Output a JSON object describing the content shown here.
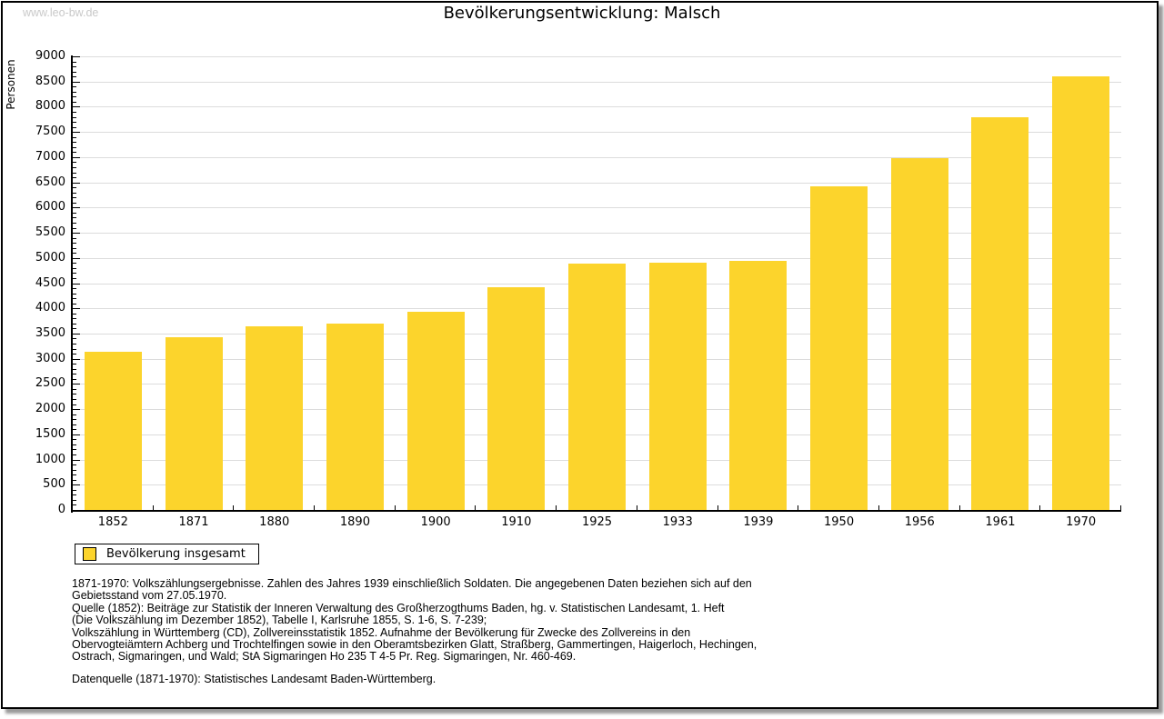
{
  "watermark": "www.leo-bw.de",
  "title": "Bevölkerungsentwicklung: Malsch",
  "legend": {
    "label": "Bevölkerung insgesamt",
    "swatch_color": "#FCD42C"
  },
  "chart_data": {
    "type": "bar",
    "title": "Bevölkerungsentwicklung: Malsch",
    "xlabel": "",
    "ylabel": "Personen",
    "categories": [
      "1852",
      "1871",
      "1880",
      "1890",
      "1900",
      "1910",
      "1925",
      "1933",
      "1939",
      "1950",
      "1956",
      "1961",
      "1970"
    ],
    "values": [
      3130,
      3420,
      3640,
      3690,
      3930,
      4420,
      4880,
      4900,
      4950,
      6420,
      6980,
      7790,
      8600
    ],
    "series_name": "Bevölkerung insgesamt",
    "ylim": [
      0,
      9000
    ],
    "ytick_step": 500,
    "y_minor_tick_step": 100,
    "grid": true,
    "legend_position": "bottom-left",
    "bar_color": "#FCD42C",
    "gridline_color": "#dcdcdc"
  },
  "footnotes": [
    "1871-1970: Volkszählungsergebnisse. Zahlen des Jahres 1939 einschließlich Soldaten. Die angegebenen Daten beziehen sich auf den",
    "Gebietsstand vom 27.05.1970.",
    "Quelle (1852): Beiträge zur Statistik der Inneren Verwaltung des Großherzogthums Baden, hg. v. Statistischen Landesamt, 1. Heft",
    "(Die Volkszählung im Dezember 1852), Tabelle I, Karlsruhe 1855, S. 1-6, S. 7-239;",
    "Volkszählung in Württemberg (CD), Zollvereinsstatistik 1852. Aufnahme der Bevölkerung für Zwecke des Zollvereins in den",
    "Obervogteiämtern Achberg und Trochtelfingen sowie in den Oberamtsbezirken Glatt, Straßberg, Gammertingen, Haigerloch, Hechingen,",
    "Ostrach, Sigmaringen, und Wald; StA Sigmaringen Ho 235 T 4-5 Pr. Reg. Sigmaringen, Nr. 460-469."
  ],
  "datasource": "Datenquelle (1871-1970): Statistisches Landesamt Baden-Württemberg."
}
